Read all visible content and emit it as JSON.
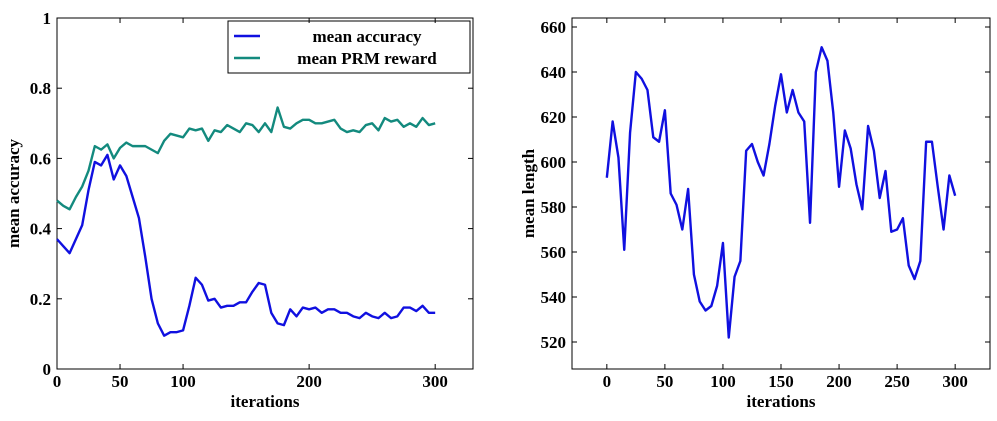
{
  "chart_data": [
    {
      "type": "line",
      "xlabel": "iterations",
      "ylabel": "mean accuracy",
      "x": [
        0,
        5,
        10,
        15,
        20,
        25,
        30,
        35,
        40,
        45,
        50,
        55,
        60,
        65,
        70,
        75,
        80,
        85,
        90,
        95,
        100,
        105,
        110,
        115,
        120,
        125,
        130,
        135,
        140,
        145,
        150,
        155,
        160,
        165,
        170,
        175,
        180,
        185,
        190,
        195,
        200,
        205,
        210,
        215,
        220,
        225,
        230,
        235,
        240,
        245,
        250,
        255,
        260,
        265,
        270,
        275,
        280,
        285,
        290,
        295,
        300
      ],
      "series": [
        {
          "name": "mean accuracy",
          "color": "#1010e0",
          "values": [
            0.37,
            0.35,
            0.33,
            0.37,
            0.41,
            0.51,
            0.59,
            0.58,
            0.61,
            0.54,
            0.58,
            0.55,
            0.49,
            0.43,
            0.32,
            0.2,
            0.13,
            0.095,
            0.105,
            0.105,
            0.11,
            0.18,
            0.26,
            0.24,
            0.195,
            0.2,
            0.175,
            0.18,
            0.18,
            0.19,
            0.19,
            0.22,
            0.245,
            0.24,
            0.16,
            0.13,
            0.125,
            0.17,
            0.15,
            0.175,
            0.17,
            0.175,
            0.16,
            0.17,
            0.17,
            0.16,
            0.16,
            0.15,
            0.145,
            0.16,
            0.15,
            0.145,
            0.16,
            0.145,
            0.15,
            0.175,
            0.175,
            0.165,
            0.18,
            0.16,
            0.16
          ]
        },
        {
          "name": "mean PRM reward",
          "color": "#138a7e",
          "values": [
            0.48,
            0.465,
            0.455,
            0.49,
            0.52,
            0.565,
            0.635,
            0.625,
            0.64,
            0.6,
            0.63,
            0.645,
            0.635,
            0.635,
            0.635,
            0.625,
            0.615,
            0.65,
            0.67,
            0.665,
            0.66,
            0.685,
            0.68,
            0.685,
            0.65,
            0.68,
            0.675,
            0.695,
            0.685,
            0.675,
            0.7,
            0.695,
            0.675,
            0.7,
            0.675,
            0.745,
            0.69,
            0.685,
            0.7,
            0.71,
            0.71,
            0.7,
            0.7,
            0.705,
            0.71,
            0.685,
            0.675,
            0.68,
            0.675,
            0.695,
            0.7,
            0.68,
            0.715,
            0.705,
            0.71,
            0.69,
            0.7,
            0.69,
            0.715,
            0.695,
            0.7
          ]
        }
      ],
      "xlim": [
        0,
        330
      ],
      "ylim": [
        0,
        1
      ],
      "xticks": [
        0,
        50,
        100,
        200,
        300
      ],
      "yticks": [
        0,
        0.2,
        0.4,
        0.6,
        0.8,
        1
      ],
      "legend": "upper right"
    },
    {
      "type": "line",
      "xlabel": "iterations",
      "ylabel": "mean length",
      "x": [
        0,
        5,
        10,
        15,
        20,
        25,
        30,
        35,
        40,
        45,
        50,
        55,
        60,
        65,
        70,
        75,
        80,
        85,
        90,
        95,
        100,
        105,
        110,
        115,
        120,
        125,
        130,
        135,
        140,
        145,
        150,
        155,
        160,
        165,
        170,
        175,
        180,
        185,
        190,
        195,
        200,
        205,
        210,
        215,
        220,
        225,
        230,
        235,
        240,
        245,
        250,
        255,
        260,
        265,
        270,
        275,
        280,
        285,
        290,
        295,
        300
      ],
      "series": [
        {
          "color": "#1010e0",
          "values": [
            593,
            618,
            602,
            561,
            613,
            640,
            637,
            632,
            611,
            609,
            623,
            586,
            581,
            570,
            588,
            550,
            538,
            534,
            536,
            545,
            564,
            522,
            549,
            556,
            605,
            608,
            600,
            594,
            608,
            625,
            639,
            622,
            632,
            622,
            618,
            573,
            640,
            651,
            645,
            622,
            589,
            614,
            606,
            590,
            579,
            616,
            605,
            584,
            596,
            569,
            570,
            575,
            554,
            548,
            556,
            609,
            609,
            589,
            570,
            594,
            585
          ]
        }
      ],
      "xlim": [
        -30,
        330
      ],
      "ylim": [
        508,
        664
      ],
      "xticks": [
        0,
        50,
        100,
        150,
        200,
        250,
        300
      ],
      "yticks": [
        520,
        540,
        560,
        580,
        600,
        620,
        640,
        660
      ]
    }
  ]
}
